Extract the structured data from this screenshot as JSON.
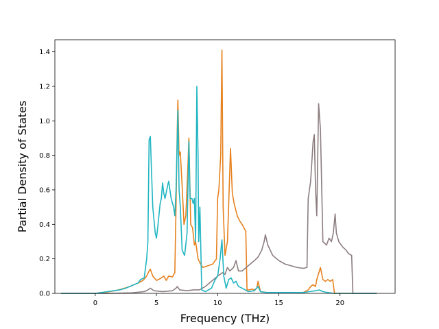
{
  "chart_data": {
    "type": "line",
    "title": "",
    "xlabel": "Frequency (THz)",
    "ylabel": "Partial Density of States",
    "xlim": [
      -3.3,
      24.5
    ],
    "ylim": [
      0,
      1.47
    ],
    "xticks": [
      0,
      5,
      10,
      15,
      20
    ],
    "yticks": [
      0.0,
      0.2,
      0.4,
      0.6,
      0.8,
      1.0,
      1.2,
      1.4
    ],
    "ytick_labels": [
      "0.0",
      "0.2",
      "0.4",
      "0.6",
      "0.8",
      "1.0",
      "1.2",
      "1.4"
    ],
    "grid": false,
    "legend": "none",
    "series": [
      {
        "color": "#e6811e",
        "points": [
          [
            -2.8,
            0
          ],
          [
            0,
            0
          ],
          [
            0.5,
            0.004
          ],
          [
            1,
            0.008
          ],
          [
            1.5,
            0.014
          ],
          [
            2,
            0.022
          ],
          [
            2.5,
            0.032
          ],
          [
            3,
            0.045
          ],
          [
            3.5,
            0.06
          ],
          [
            3.9,
            0.075
          ],
          [
            4.2,
            0.1
          ],
          [
            4.4,
            0.13
          ],
          [
            4.5,
            0.14
          ],
          [
            4.7,
            0.1
          ],
          [
            5.0,
            0.075
          ],
          [
            5.3,
            0.085
          ],
          [
            5.6,
            0.1
          ],
          [
            5.8,
            0.075
          ],
          [
            6.0,
            0.1
          ],
          [
            6.3,
            0.095
          ],
          [
            6.5,
            0.12
          ],
          [
            6.6,
            0.5
          ],
          [
            6.7,
            0.95
          ],
          [
            6.75,
            1.12
          ],
          [
            6.85,
            0.8
          ],
          [
            6.95,
            0.82
          ],
          [
            7.1,
            0.62
          ],
          [
            7.25,
            0.4
          ],
          [
            7.4,
            0.45
          ],
          [
            7.55,
            0.7
          ],
          [
            7.65,
            0.9
          ],
          [
            7.8,
            0.4
          ],
          [
            7.95,
            0.38
          ],
          [
            8.1,
            0.28
          ],
          [
            8.2,
            0.3
          ],
          [
            8.4,
            0.2
          ],
          [
            8.6,
            0.17
          ],
          [
            8.8,
            0.15
          ],
          [
            9.2,
            0.16
          ],
          [
            9.6,
            0.17
          ],
          [
            9.9,
            0.2
          ],
          [
            10.0,
            0.55
          ],
          [
            10.1,
            0.6
          ],
          [
            10.25,
            0.8
          ],
          [
            10.35,
            1.41
          ],
          [
            10.45,
            0.5
          ],
          [
            10.6,
            0.22
          ],
          [
            10.8,
            0.3
          ],
          [
            10.95,
            0.62
          ],
          [
            11.05,
            0.84
          ],
          [
            11.2,
            0.58
          ],
          [
            11.35,
            0.52
          ],
          [
            11.6,
            0.45
          ],
          [
            11.8,
            0.42
          ],
          [
            12.0,
            0.4
          ],
          [
            12.3,
            0.36
          ],
          [
            12.4,
            0.02
          ],
          [
            12.6,
            0.02
          ],
          [
            12.8,
            0.025
          ],
          [
            13.0,
            0.02
          ],
          [
            13.2,
            0.03
          ],
          [
            13.3,
            0.07
          ],
          [
            13.5,
            0.01
          ],
          [
            14,
            0.005
          ],
          [
            17,
            0.005
          ],
          [
            17.4,
            0.02
          ],
          [
            17.6,
            0.04
          ],
          [
            17.8,
            0.05
          ],
          [
            18.0,
            0.04
          ],
          [
            18.1,
            0.08
          ],
          [
            18.4,
            0.15
          ],
          [
            18.6,
            0.08
          ],
          [
            18.8,
            0.07
          ],
          [
            19.0,
            0.08
          ],
          [
            19.2,
            0.07
          ],
          [
            19.4,
            0.08
          ],
          [
            19.55,
            0.0
          ],
          [
            21,
            0.0
          ],
          [
            23,
            0
          ]
        ]
      },
      {
        "color": "#8c7d7f",
        "points": [
          [
            -2.8,
            0
          ],
          [
            1,
            0
          ],
          [
            3,
            0.003
          ],
          [
            4,
            0.01
          ],
          [
            4.3,
            0.02
          ],
          [
            4.5,
            0.03
          ],
          [
            4.8,
            0.015
          ],
          [
            5.5,
            0.01
          ],
          [
            6.3,
            0.015
          ],
          [
            6.6,
            0.03
          ],
          [
            6.7,
            0.04
          ],
          [
            6.9,
            0.02
          ],
          [
            7.5,
            0.015
          ],
          [
            8,
            0.02
          ],
          [
            8.5,
            0.02
          ],
          [
            9,
            0.04
          ],
          [
            9.5,
            0.07
          ],
          [
            10,
            0.1
          ],
          [
            10.4,
            0.12
          ],
          [
            10.6,
            0.11
          ],
          [
            10.8,
            0.15
          ],
          [
            11.0,
            0.13
          ],
          [
            11.3,
            0.15
          ],
          [
            11.5,
            0.19
          ],
          [
            11.7,
            0.13
          ],
          [
            12,
            0.13
          ],
          [
            12.5,
            0.16
          ],
          [
            13,
            0.19
          ],
          [
            13.3,
            0.21
          ],
          [
            13.6,
            0.25
          ],
          [
            13.8,
            0.3
          ],
          [
            13.9,
            0.34
          ],
          [
            14.1,
            0.28
          ],
          [
            14.5,
            0.22
          ],
          [
            15,
            0.19
          ],
          [
            15.5,
            0.17
          ],
          [
            16,
            0.16
          ],
          [
            16.5,
            0.15
          ],
          [
            17,
            0.145
          ],
          [
            17.3,
            0.15
          ],
          [
            17.4,
            0.55
          ],
          [
            17.6,
            0.65
          ],
          [
            17.8,
            0.88
          ],
          [
            17.9,
            0.92
          ],
          [
            18.0,
            0.6
          ],
          [
            18.1,
            0.45
          ],
          [
            18.25,
            1.1
          ],
          [
            18.4,
            0.95
          ],
          [
            18.6,
            0.3
          ],
          [
            18.9,
            0.28
          ],
          [
            19.1,
            0.32
          ],
          [
            19.3,
            0.3
          ],
          [
            19.45,
            0.35
          ],
          [
            19.6,
            0.46
          ],
          [
            19.7,
            0.35
          ],
          [
            19.9,
            0.3
          ],
          [
            20.2,
            0.27
          ],
          [
            20.5,
            0.25
          ],
          [
            20.7,
            0.23
          ],
          [
            20.95,
            0.22
          ],
          [
            21.05,
            0.0
          ],
          [
            23,
            0
          ]
        ]
      },
      {
        "color": "#20b5c2",
        "points": [
          [
            -2.8,
            0
          ],
          [
            0,
            0
          ],
          [
            0.5,
            0.005
          ],
          [
            1,
            0.01
          ],
          [
            1.5,
            0.015
          ],
          [
            2,
            0.02
          ],
          [
            2.5,
            0.03
          ],
          [
            3,
            0.045
          ],
          [
            3.5,
            0.06
          ],
          [
            3.7,
            0.08
          ],
          [
            4.0,
            0.09
          ],
          [
            4.2,
            0.2
          ],
          [
            4.3,
            0.3
          ],
          [
            4.4,
            0.89
          ],
          [
            4.5,
            0.91
          ],
          [
            4.6,
            0.7
          ],
          [
            4.7,
            0.5
          ],
          [
            4.9,
            0.35
          ],
          [
            5.0,
            0.32
          ],
          [
            5.1,
            0.38
          ],
          [
            5.3,
            0.52
          ],
          [
            5.4,
            0.55
          ],
          [
            5.5,
            0.64
          ],
          [
            5.6,
            0.58
          ],
          [
            5.7,
            0.55
          ],
          [
            5.9,
            0.62
          ],
          [
            6.0,
            0.65
          ],
          [
            6.1,
            0.6
          ],
          [
            6.2,
            0.55
          ],
          [
            6.4,
            0.5
          ],
          [
            6.5,
            0.45
          ],
          [
            6.6,
            0.6
          ],
          [
            6.7,
            0.9
          ],
          [
            6.75,
            1.06
          ],
          [
            6.85,
            0.6
          ],
          [
            6.95,
            0.5
          ],
          [
            7.1,
            0.25
          ],
          [
            7.3,
            0.22
          ],
          [
            7.5,
            0.35
          ],
          [
            7.65,
            0.88
          ],
          [
            7.75,
            0.55
          ],
          [
            7.9,
            0.55
          ],
          [
            8.0,
            0.52
          ],
          [
            8.1,
            0.55
          ],
          [
            8.2,
            0.3
          ],
          [
            8.3,
            1.2
          ],
          [
            8.4,
            0.8
          ],
          [
            8.45,
            0.3
          ],
          [
            8.55,
            0.5
          ],
          [
            8.7,
            0.02
          ],
          [
            9,
            0.01
          ],
          [
            9.5,
            0.03
          ],
          [
            9.8,
            0.08
          ],
          [
            10.0,
            0.1
          ],
          [
            10.2,
            0.2
          ],
          [
            10.35,
            0.31
          ],
          [
            10.5,
            0.1
          ],
          [
            10.7,
            0.03
          ],
          [
            10.9,
            0.08
          ],
          [
            11.1,
            0.09
          ],
          [
            11.3,
            0.06
          ],
          [
            11.5,
            0.07
          ],
          [
            11.7,
            0.04
          ],
          [
            12,
            0.03
          ],
          [
            12.5,
            0.01
          ],
          [
            13,
            0.015
          ],
          [
            13.3,
            0.04
          ],
          [
            13.5,
            0.01
          ],
          [
            14,
            0.005
          ],
          [
            17,
            0.005
          ],
          [
            17.5,
            0.01
          ],
          [
            18,
            0.015
          ],
          [
            18.3,
            0.02
          ],
          [
            18.6,
            0.01
          ],
          [
            19,
            0.005
          ],
          [
            19.5,
            0.0
          ],
          [
            23,
            0
          ]
        ]
      }
    ]
  }
}
